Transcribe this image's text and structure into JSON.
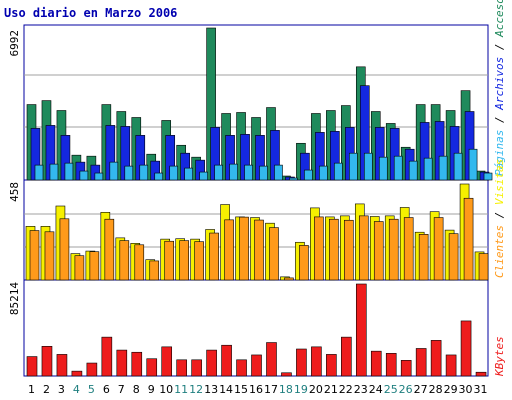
{
  "header": {
    "title": "Uso diario en Marzo 2006"
  },
  "colors": {
    "accesos": "#1f8a5c",
    "archivos": "#1428e0",
    "paginas": "#33b8ee",
    "visitas": "#f6f000",
    "clientes": "#ff9a1a",
    "kbytes": "#ee1c1c",
    "weekend_label": "#1f7f7f",
    "weekday_label": "#000000",
    "frame": "#0000a0",
    "grid": "#a0a0a0"
  },
  "chart_data": [
    {
      "type": "bar",
      "panel": "top",
      "ymax_label": "6992",
      "ylim": [
        0,
        6992
      ],
      "categories": [
        "1",
        "2",
        "3",
        "4",
        "5",
        "6",
        "7",
        "8",
        "9",
        "10",
        "11",
        "12",
        "13",
        "14",
        "15",
        "16",
        "17",
        "18",
        "19",
        "20",
        "21",
        "22",
        "23",
        "24",
        "25",
        "26",
        "27",
        "28",
        "29",
        "30",
        "31"
      ],
      "legend": [
        "Accesos",
        "Archivos",
        "Páginas"
      ],
      "series": [
        {
          "name": "Accesos",
          "values": [
            3471,
            3653,
            3197,
            1142,
            1096,
            3471,
            3151,
            2876,
            1187,
            2739,
            1598,
            1050,
            6992,
            3060,
            3106,
            2876,
            3334,
            183,
            1689,
            3060,
            3197,
            3425,
            5206,
            3151,
            2602,
            1507,
            3471,
            3471,
            3197,
            4111,
            411
          ]
        },
        {
          "name": "Archivos",
          "values": [
            2374,
            2511,
            2054,
            822,
            685,
            2511,
            2465,
            2054,
            868,
            2054,
            1233,
            913,
            2420,
            2054,
            2100,
            2054,
            2282,
            137,
            1233,
            2191,
            2237,
            2420,
            4339,
            2420,
            2374,
            1416,
            2648,
            2694,
            2465,
            3151,
            365
          ]
        },
        {
          "name": "Páginas",
          "values": [
            685,
            731,
            776,
            411,
            320,
            822,
            639,
            685,
            320,
            640,
            548,
            365,
            685,
            731,
            685,
            639,
            685,
            91,
            457,
            640,
            776,
            1233,
            1233,
            1050,
            1096,
            868,
            1005,
            1096,
            1233,
            1416,
            320
          ]
        }
      ]
    },
    {
      "type": "bar",
      "panel": "middle",
      "ymax_label": "458",
      "ylim": [
        0,
        458
      ],
      "categories": [
        "1",
        "2",
        "3",
        "4",
        "5",
        "6",
        "7",
        "8",
        "9",
        "10",
        "11",
        "12",
        "13",
        "14",
        "15",
        "16",
        "17",
        "18",
        "19",
        "20",
        "21",
        "22",
        "23",
        "24",
        "25",
        "26",
        "27",
        "28",
        "29",
        "30",
        "31"
      ],
      "legend": [
        "Visitas",
        "Clientes"
      ],
      "series": [
        {
          "name": "Visitas",
          "values": [
            256,
            256,
            353,
            126,
            138,
            323,
            201,
            175,
            97,
            195,
            197,
            195,
            241,
            360,
            301,
            298,
            271,
            15,
            180,
            344,
            301,
            306,
            363,
            303,
            306,
            346,
            228,
            326,
            238,
            458,
            134
          ]
        },
        {
          "name": "Clientes",
          "values": [
            236,
            230,
            292,
            116,
            135,
            290,
            188,
            168,
            91,
            185,
            188,
            183,
            224,
            287,
            300,
            286,
            250,
            10,
            165,
            301,
            290,
            285,
            306,
            279,
            290,
            298,
            218,
            298,
            221,
            390,
            126
          ]
        }
      ]
    },
    {
      "type": "bar",
      "panel": "bottom",
      "ymax_label": "85214",
      "ylim": [
        0,
        85214
      ],
      "categories": [
        "1",
        "2",
        "3",
        "4",
        "5",
        "6",
        "7",
        "8",
        "9",
        "10",
        "11",
        "12",
        "13",
        "14",
        "15",
        "16",
        "17",
        "18",
        "19",
        "20",
        "21",
        "22",
        "23",
        "24",
        "25",
        "26",
        "27",
        "28",
        "29",
        "30",
        "31"
      ],
      "legend": [
        "KBytes"
      ],
      "series": [
        {
          "name": "KBytes",
          "values": [
            18000,
            27500,
            20000,
            4500,
            12000,
            36000,
            24000,
            22000,
            16000,
            27000,
            15000,
            15000,
            24000,
            28500,
            15000,
            19500,
            31000,
            3000,
            25000,
            27000,
            20000,
            36000,
            85214,
            23000,
            21000,
            14500,
            25500,
            33000,
            19500,
            51000,
            3500
          ]
        }
      ]
    }
  ]
}
